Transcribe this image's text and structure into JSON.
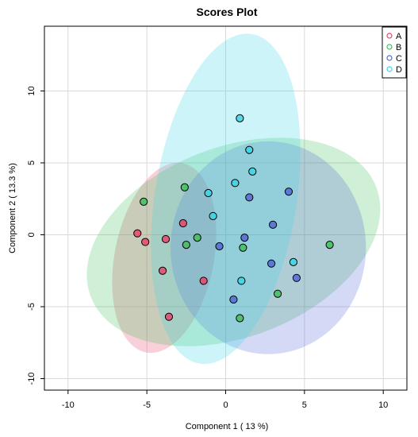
{
  "chart_data": {
    "type": "scatter",
    "title": "Scores Plot",
    "xlabel": "Component 1 ( 13 %)",
    "ylabel": "Component 2 ( 13.3 %)",
    "xlim": [
      -11.5,
      11.5
    ],
    "ylim": [
      -10.8,
      14.5
    ],
    "xticks": [
      -10,
      -5,
      0,
      5,
      10
    ],
    "yticks": [
      -10,
      -5,
      0,
      5,
      10
    ],
    "grid": true,
    "legend_position": "top-right",
    "series": [
      {
        "name": "A",
        "color": "#e8456b",
        "ellipse": {
          "cx": -3.9,
          "cy": -1.6,
          "rx": 3.15,
          "ry": 6.7,
          "angle": 11
        },
        "points": [
          [
            -5.6,
            0.1
          ],
          [
            -5.1,
            -0.5
          ],
          [
            -3.8,
            -0.3
          ],
          [
            -4.0,
            -2.5
          ],
          [
            -2.7,
            0.8
          ],
          [
            -1.4,
            -3.2
          ],
          [
            -3.6,
            -5.7
          ]
        ]
      },
      {
        "name": "B",
        "color": "#3fbf5a",
        "ellipse": {
          "cx": 0.5,
          "cy": -0.5,
          "rx": 9.7,
          "ry": 6.6,
          "angle": -21
        },
        "points": [
          [
            -5.2,
            2.3
          ],
          [
            -2.6,
            3.3
          ],
          [
            -1.8,
            -0.2
          ],
          [
            -2.5,
            -0.7
          ],
          [
            1.1,
            -0.9
          ],
          [
            3.3,
            -4.1
          ],
          [
            0.9,
            -5.8
          ],
          [
            6.6,
            -0.7
          ]
        ]
      },
      {
        "name": "C",
        "color": "#5269d6",
        "ellipse": {
          "cx": 2.7,
          "cy": -0.9,
          "rx": 6.2,
          "ry": 7.4,
          "angle": 0
        },
        "points": [
          [
            4.0,
            3.0
          ],
          [
            1.5,
            2.6
          ],
          [
            3.0,
            0.7
          ],
          [
            1.2,
            -0.2
          ],
          [
            -0.4,
            -0.8
          ],
          [
            2.9,
            -2.0
          ],
          [
            4.5,
            -3.0
          ],
          [
            0.5,
            -4.5
          ]
        ]
      },
      {
        "name": "D",
        "color": "#38d6e6",
        "ellipse": {
          "cx": 0.0,
          "cy": 2.5,
          "rx": 4.5,
          "ry": 11.6,
          "angle": 9
        },
        "points": [
          [
            0.9,
            8.1
          ],
          [
            1.5,
            5.9
          ],
          [
            1.7,
            4.4
          ],
          [
            -1.1,
            2.9
          ],
          [
            0.6,
            3.6
          ],
          [
            -0.8,
            1.3
          ],
          [
            1.0,
            -3.2
          ],
          [
            4.3,
            -1.9
          ]
        ]
      }
    ]
  }
}
